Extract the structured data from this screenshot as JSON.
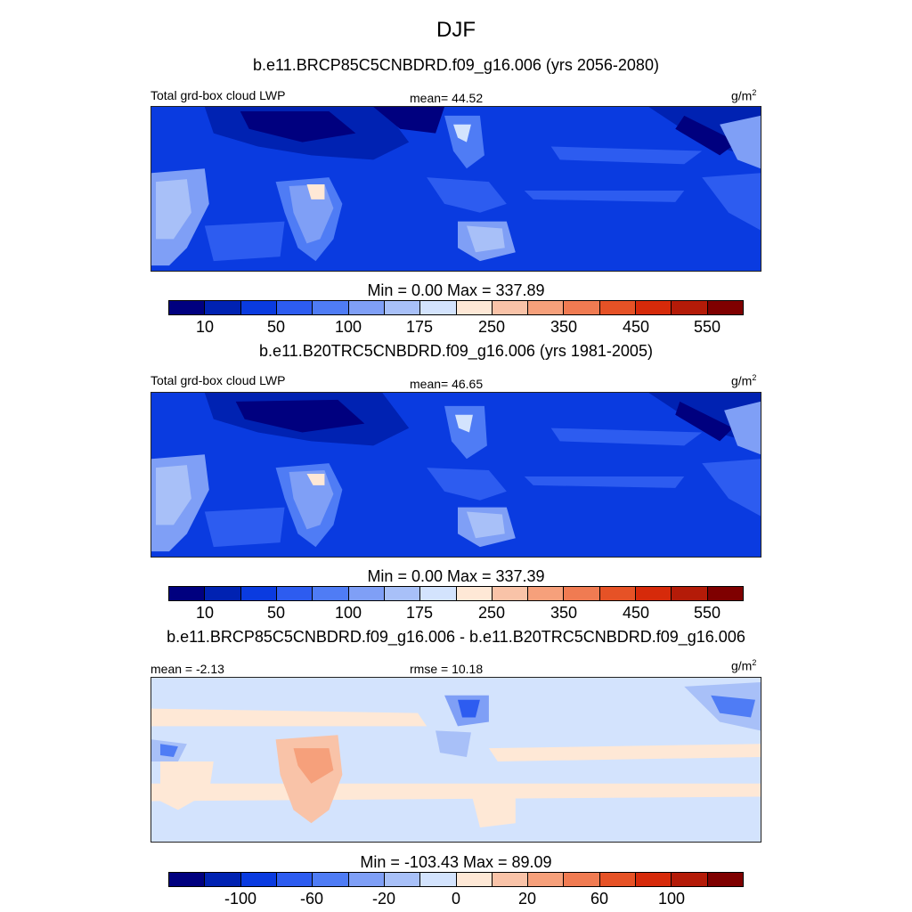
{
  "title": "DJF",
  "palette_full": [
    "#00007f",
    "#0022b2",
    "#0a3be0",
    "#2d5cf0",
    "#4f7cf5",
    "#7f9ff6",
    "#a8c0f8",
    "#d3e3fd",
    "#fee8d6",
    "#f9c3a8",
    "#f6a07b",
    "#f07b52",
    "#e65226",
    "#d62a0a",
    "#b41b08",
    "#7f0000"
  ],
  "panels": [
    {
      "subtitle": "b.e11.BRCP85C5CNBDRD.f09_g16.006 (yrs 2056-2080)",
      "left_label": "Total grd-box cloud LWP",
      "center_label": "mean=  44.52",
      "units": "g/m",
      "units_sup": "2",
      "minmax": "Min =   0.00 Max = 337.89",
      "ticks": [
        "10",
        "50",
        "100",
        "175",
        "250",
        "350",
        "450",
        "550"
      ]
    },
    {
      "subtitle": "b.e11.B20TRC5CNBDRD.f09_g16.006 (yrs 1981-2005)",
      "left_label": "Total grd-box cloud LWP",
      "center_label": "mean=  46.65",
      "units": "g/m",
      "units_sup": "2",
      "minmax": "Min =   0.00 Max = 337.39",
      "ticks": [
        "10",
        "50",
        "100",
        "175",
        "250",
        "350",
        "450",
        "550"
      ]
    },
    {
      "subtitle": "b.e11.BRCP85C5CNBDRD.f09_g16.006 - b.e11.B20TRC5CNBDRD.f09_g16.006",
      "left_label": "mean =  -2.13",
      "center_label": "rmse =  10.18",
      "units": "g/m",
      "units_sup": "2",
      "minmax": "Min = -103.43 Max =  89.09",
      "ticks": [
        "-100",
        "-60",
        "-20",
        "0",
        "20",
        "60",
        "100"
      ]
    }
  ]
}
